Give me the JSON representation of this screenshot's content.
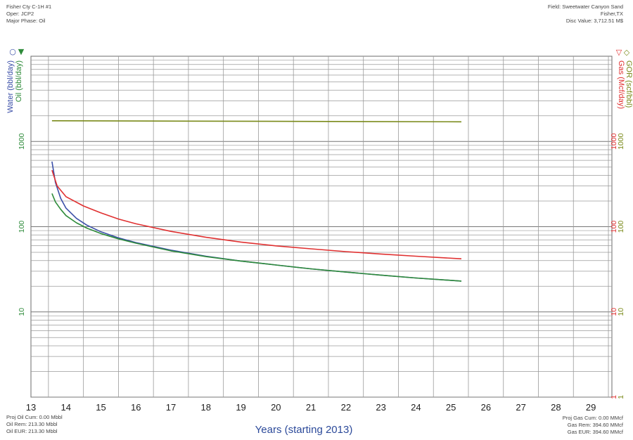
{
  "header_left": {
    "well_name": "Fisher Cty C-1H #1",
    "operator": "Oper: JCP2",
    "major_phase": "Major Phase: Oil"
  },
  "header_right": {
    "field": "Field: Sweetwater Canyon Sand",
    "location": "Fisher,TX",
    "disc_value": "Disc Value: 3,712.51 M$"
  },
  "footer_left": {
    "proj_oil_cum": "Proj Oil Cum: 0.00 Mbbl",
    "oil_rem": "Oil Rem: 213.30 Mbbl",
    "oil_eur": "Oil EUR: 213.30 Mbbl"
  },
  "footer_right": {
    "proj_gas_cum": "Proj Gas Cum: 0.00 MMcf",
    "gas_rem": "Gas Rem: 394.60 MMcf",
    "gas_eur": "Gas EUR: 394.60 MMcf"
  },
  "colors": {
    "water": "#3b4fa8",
    "oil": "#2e8b3a",
    "gas": "#e03030",
    "gor": "#7a8a1a",
    "grid": "#9a9a9a"
  },
  "chart_data": {
    "type": "line",
    "xlabel": "Years (starting 2013)",
    "x_ticks": [
      "13",
      "14",
      "15",
      "16",
      "17",
      "18",
      "19",
      "20",
      "21",
      "22",
      "23",
      "24",
      "25",
      "26",
      "27",
      "28",
      "29"
    ],
    "xlim": [
      13,
      29.6
    ],
    "yscale": "log",
    "ylim": [
      1,
      10000
    ],
    "y_ticks_left": [
      "10",
      "100",
      "1000"
    ],
    "y_ticks_right": [
      "1",
      "10",
      "100",
      "1000"
    ],
    "left_axis_labels": [
      {
        "text": "Water (bbl/day)",
        "symbol": "○",
        "color": "#3b4fa8"
      },
      {
        "text": "Oil (bbl/day)",
        "symbol": "▼",
        "color": "#2e8b3a"
      }
    ],
    "right_axis_labels": [
      {
        "text": "GOR (scf/bbl)",
        "symbol": "◇",
        "color": "#7a8a1a"
      },
      {
        "text": "Gas (Mcf/day)",
        "symbol": "▽",
        "color": "#e03030"
      }
    ],
    "series": [
      {
        "name": "Water (bbl/day)",
        "color": "#3b4fa8",
        "x": [
          13.6,
          13.7,
          13.85,
          14.0,
          14.3,
          14.6,
          15.0,
          15.5,
          16.0,
          17.0,
          18.0,
          19.0,
          20.0,
          21.0,
          22.0,
          23.0,
          24.0,
          25.3
        ],
        "y": [
          580,
          330,
          215,
          165,
          125,
          104,
          87,
          74,
          65,
          53,
          45,
          39.5,
          35.5,
          32,
          29.3,
          27,
          25,
          23
        ]
      },
      {
        "name": "Oil (bbl/day)",
        "color": "#2e8b3a",
        "x": [
          13.6,
          13.7,
          13.85,
          14.0,
          14.3,
          14.6,
          15.0,
          15.5,
          16.0,
          17.0,
          18.0,
          19.0,
          20.0,
          21.0,
          22.0,
          23.0,
          24.0,
          25.3
        ],
        "y": [
          245,
          195,
          160,
          135,
          111,
          96,
          83,
          72,
          64,
          52,
          44.5,
          39.5,
          35.5,
          32,
          29.3,
          27,
          25,
          23
        ]
      },
      {
        "name": "Gas (Mcf/day)",
        "color": "#e03030",
        "x": [
          13.6,
          13.75,
          14.0,
          14.5,
          15.0,
          15.5,
          16.0,
          17.0,
          18.0,
          19.0,
          20.0,
          21.0,
          22.0,
          23.0,
          24.0,
          25.3
        ],
        "y": [
          460,
          300,
          225,
          175,
          145,
          123,
          108,
          88,
          75,
          66,
          59.5,
          55,
          51,
          47.8,
          45,
          42
        ]
      },
      {
        "name": "GOR (scf/bbl)",
        "color": "#7a8a1a",
        "x": [
          13.6,
          25.3
        ],
        "y": [
          1750,
          1700
        ]
      }
    ]
  }
}
